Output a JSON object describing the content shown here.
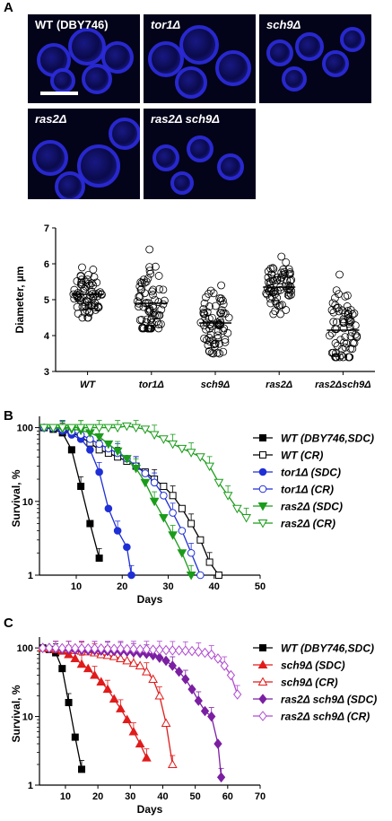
{
  "panelA": {
    "letter": "A",
    "images": [
      {
        "label": "WT (DBY746)"
      },
      {
        "label": "tor1Δ"
      },
      {
        "label": "sch9Δ"
      },
      {
        "label": "ras2Δ"
      },
      {
        "label": "ras2Δ sch9Δ"
      }
    ]
  },
  "panelB": {
    "letter": "B"
  },
  "panelC": {
    "letter": "C"
  },
  "colors": {
    "black": "#000000",
    "blue": "#1f2fd6",
    "green": "#1a9c1a",
    "red": "#e11b1b",
    "purple": "#7b1fa2",
    "violet": "#b04ad0"
  },
  "chart_data": [
    {
      "type": "scatter",
      "xlabel": "",
      "ylabel": "Diameter, µm",
      "ylim": [
        3,
        7
      ],
      "yticks": [
        "3",
        "4",
        "5",
        "6",
        "7"
      ],
      "categories": [
        "WT",
        "tor1Δ",
        "sch9Δ",
        "ras2Δ",
        "ras2Δsch9Δ"
      ],
      "means": [
        5.15,
        4.9,
        4.35,
        5.35,
        4.15
      ],
      "ranges": [
        [
          4.5,
          5.9
        ],
        [
          4.2,
          6.4
        ],
        [
          3.5,
          5.4
        ],
        [
          4.6,
          6.2
        ],
        [
          3.4,
          5.7
        ]
      ]
    },
    {
      "type": "line",
      "xlabel": "Days",
      "ylabel": "Survival, %",
      "xlim": [
        2,
        50
      ],
      "xticks": [
        "10",
        "20",
        "30",
        "40",
        "50"
      ],
      "yticks": [
        "1",
        "10",
        "100"
      ],
      "yscale": "log",
      "series": [
        {
          "name": "WT (DBY746,SDC)",
          "color": "#000000",
          "marker": "square",
          "filled": true,
          "x": [
            3,
            5,
            7,
            9,
            11,
            13,
            15
          ],
          "y": [
            100,
            95,
            85,
            50,
            16,
            5,
            1.7
          ]
        },
        {
          "name": "WT (CR)",
          "color": "#000000",
          "marker": "square",
          "filled": false,
          "x": [
            3,
            5,
            7,
            9,
            11,
            13,
            15,
            17,
            19,
            21,
            23,
            25,
            27,
            29,
            31,
            33,
            35,
            37,
            39,
            41
          ],
          "y": [
            100,
            98,
            92,
            85,
            75,
            62,
            50,
            45,
            40,
            35,
            30,
            25,
            20,
            16,
            12,
            8,
            5,
            3,
            1.5,
            1
          ]
        },
        {
          "name": "tor1Δ (SDC)",
          "color": "#1f2fd6",
          "marker": "circle",
          "filled": true,
          "x": [
            3,
            5,
            7,
            9,
            11,
            13,
            15,
            17,
            19,
            21,
            22
          ],
          "y": [
            100,
            98,
            90,
            80,
            70,
            50,
            25,
            8,
            4,
            2.4,
            1
          ]
        },
        {
          "name": "tor1Δ (CR)",
          "color": "#1f2fd6",
          "marker": "circle",
          "filled": false,
          "x": [
            3,
            5,
            7,
            9,
            11,
            13,
            15,
            17,
            19,
            21,
            23,
            25,
            27,
            29,
            31,
            33,
            35,
            37
          ],
          "y": [
            100,
            98,
            95,
            88,
            80,
            70,
            60,
            52,
            45,
            38,
            30,
            24,
            18,
            12,
            7,
            4,
            2,
            1
          ]
        },
        {
          "name": "ras2Δ (SDC)",
          "color": "#1a9c1a",
          "marker": "tridown",
          "filled": true,
          "x": [
            3,
            5,
            7,
            9,
            11,
            13,
            15,
            17,
            19,
            21,
            23,
            25,
            27,
            29,
            31,
            33,
            35
          ],
          "y": [
            100,
            99,
            97,
            95,
            92,
            85,
            75,
            60,
            48,
            38,
            28,
            18,
            10,
            6,
            3.5,
            2,
            1
          ]
        },
        {
          "name": "ras2Δ (CR)",
          "color": "#1a9c1a",
          "marker": "tridown",
          "filled": false,
          "x": [
            3,
            5,
            7,
            9,
            11,
            13,
            15,
            17,
            19,
            21,
            23,
            25,
            27,
            29,
            31,
            33,
            35,
            37,
            39,
            41,
            43,
            45,
            47
          ],
          "y": [
            100,
            100,
            100,
            100,
            100,
            100,
            100,
            100,
            100,
            105,
            100,
            95,
            80,
            70,
            60,
            52,
            46,
            40,
            30,
            18,
            12,
            8,
            6
          ]
        }
      ]
    },
    {
      "type": "line",
      "xlabel": "Days",
      "ylabel": "Survival, %",
      "xlim": [
        2,
        70
      ],
      "xticks": [
        "10",
        "20",
        "30",
        "40",
        "50",
        "60",
        "70"
      ],
      "yticks": [
        "1",
        "10",
        "100"
      ],
      "yscale": "log",
      "series": [
        {
          "name": "WT (DBY746,SDC)",
          "color": "#000000",
          "marker": "square",
          "filled": true,
          "x": [
            3,
            5,
            7,
            9,
            11,
            13,
            15
          ],
          "y": [
            100,
            95,
            85,
            50,
            16,
            5,
            1.7
          ]
        },
        {
          "name": "sch9Δ (SDC)",
          "color": "#e11b1b",
          "marker": "triup",
          "filled": true,
          "x": [
            3,
            5,
            7,
            9,
            11,
            13,
            15,
            17,
            19,
            21,
            23,
            25,
            27,
            29,
            31,
            33,
            35
          ],
          "y": [
            100,
            98,
            95,
            90,
            80,
            70,
            58,
            50,
            40,
            32,
            25,
            18,
            13,
            9,
            6,
            4,
            2.5
          ]
        },
        {
          "name": "sch9Δ (CR)",
          "color": "#e11b1b",
          "marker": "triup",
          "filled": false,
          "x": [
            3,
            5,
            7,
            9,
            11,
            13,
            15,
            17,
            19,
            21,
            23,
            25,
            27,
            29,
            31,
            33,
            35,
            37,
            39,
            41,
            43
          ],
          "y": [
            100,
            100,
            98,
            96,
            95,
            92,
            90,
            88,
            85,
            80,
            78,
            75,
            70,
            65,
            60,
            55,
            45,
            35,
            20,
            8,
            2
          ]
        },
        {
          "name": "ras2Δ sch9Δ (SDC)",
          "color": "#7b1fa2",
          "marker": "diamond",
          "filled": true,
          "x": [
            3,
            5,
            7,
            9,
            11,
            13,
            15,
            17,
            19,
            21,
            23,
            25,
            27,
            29,
            31,
            33,
            35,
            37,
            39,
            41,
            43,
            45,
            47,
            49,
            51,
            53,
            55,
            57,
            58
          ],
          "y": [
            100,
            100,
            98,
            96,
            95,
            94,
            93,
            92,
            92,
            91,
            90,
            90,
            89,
            88,
            86,
            84,
            82,
            78,
            72,
            65,
            55,
            45,
            35,
            25,
            17,
            12,
            10,
            4,
            1.3
          ]
        },
        {
          "name": "ras2Δ sch9Δ (CR)",
          "color": "#b04ad0",
          "marker": "diamond",
          "filled": false,
          "x": [
            3,
            5,
            7,
            9,
            11,
            13,
            15,
            17,
            19,
            21,
            23,
            25,
            27,
            29,
            31,
            33,
            35,
            37,
            39,
            41,
            43,
            45,
            47,
            49,
            51,
            53,
            55,
            57,
            59,
            61,
            63
          ],
          "y": [
            100,
            100,
            100,
            99,
            99,
            99,
            98,
            98,
            98,
            98,
            97,
            97,
            97,
            96,
            96,
            95,
            95,
            94,
            94,
            93,
            92,
            92,
            91,
            90,
            88,
            85,
            80,
            70,
            55,
            40,
            21
          ]
        }
      ]
    }
  ]
}
